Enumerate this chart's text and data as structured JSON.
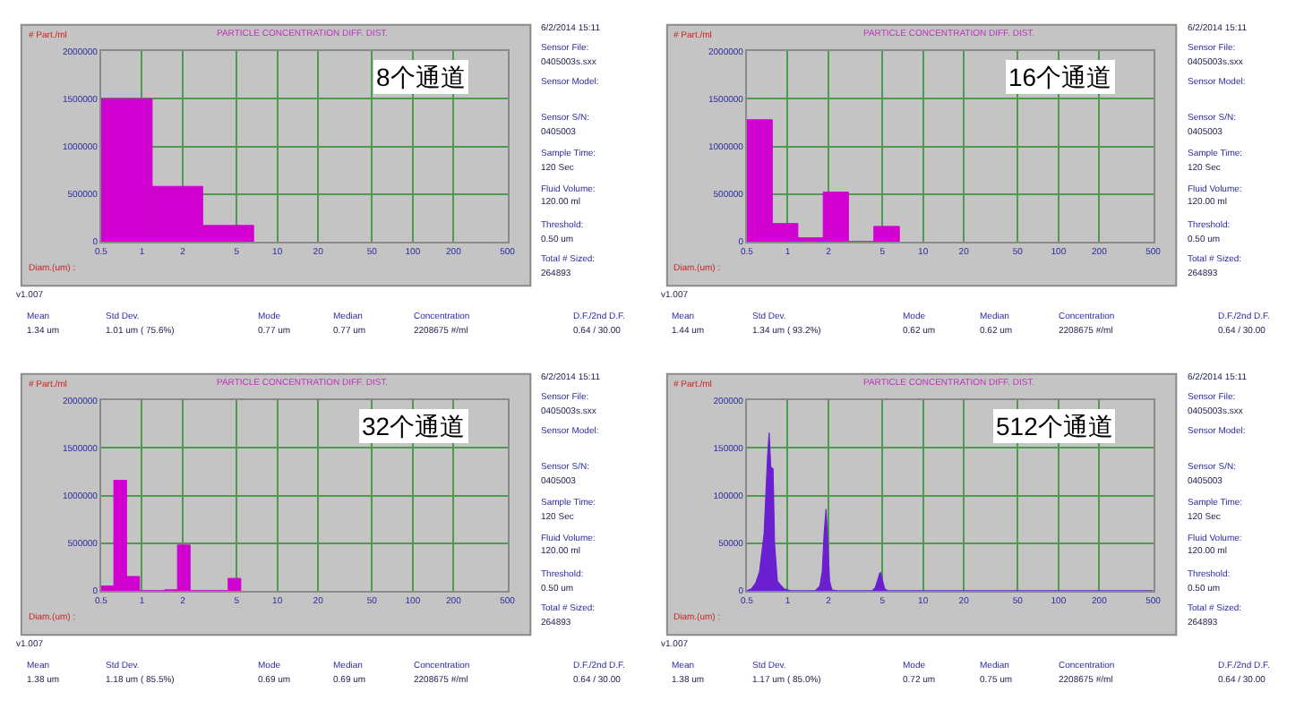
{
  "chart_data": [
    {
      "type": "histogram",
      "title": "PARTICLE CONCENTRATION DIFF. DIST.",
      "ylabel": "# Part./ml",
      "xlabel": "Diam.(um) :",
      "color": "#d000d0",
      "log": "x",
      "grid": true,
      "bins": [
        0.5,
        1.19,
        2.81,
        6.68
      ],
      "values": [
        1500000,
        580000,
        170000
      ],
      "xlim": [
        0.5,
        500
      ],
      "xticks": [
        0.5,
        1,
        2,
        5,
        10,
        20,
        50,
        100,
        200,
        500
      ],
      "ylim": [
        0,
        2000000
      ],
      "yticks": [
        0,
        500000,
        1000000,
        1500000,
        2000000
      ],
      "annotations": [
        "8个通道",
        "6/2/2014 15:11",
        "Sensor File:",
        "0405003s.sxx",
        "Sensor Model:",
        "Sensor S/N:",
        "0405003",
        "Sample Time:",
        "120 Sec",
        "Fluid Volume:",
        "120.00 ml",
        "Threshold:",
        "0.50 um",
        "Total # Sized:",
        "264893",
        "v1.007",
        "Mean",
        "Std Dev.",
        "Mode",
        "Median",
        "Concentration",
        "D.F./2nd D.F.",
        "1.34 um",
        "1.01 um ( 75.6%)",
        "0.77 um",
        "0.77 um",
        "2208675 #/ml",
        "0.64 / 30.00"
      ]
    },
    {
      "type": "histogram",
      "title": "PARTICLE CONCENTRATION DIFF. DIST.",
      "ylabel": "# Part./ml",
      "xlabel": "Diam.(um) :",
      "color": "#d000d0",
      "log": "x",
      "grid": true,
      "bins": [
        0.5,
        0.77,
        1.19,
        1.83,
        2.81,
        4.33,
        6.68
      ],
      "values": [
        1280000,
        190000,
        40000,
        520000,
        0,
        160000
      ],
      "xlim": [
        0.5,
        500
      ],
      "xticks": [
        0.5,
        1,
        2,
        5,
        10,
        20,
        50,
        100,
        200,
        500
      ],
      "ylim": [
        0,
        2000000
      ],
      "yticks": [
        0,
        500000,
        1000000,
        1500000,
        2000000
      ],
      "annotations": [
        "16个通道",
        "6/2/2014 15:11",
        "Sensor File:",
        "0405003s.sxx",
        "Sensor Model:",
        "Sensor S/N:",
        "0405003",
        "Sample Time:",
        "120 Sec",
        "Fluid Volume:",
        "120.00 ml",
        "Threshold:",
        "0.50 um",
        "Total # Sized:",
        "264893",
        "v1.007",
        "Mean",
        "Std Dev.",
        "Mode",
        "Median",
        "Concentration",
        "D.F./2nd D.F.",
        "1.44 um",
        "1.34 um ( 93.2%)",
        "0.62 um",
        "0.62 um",
        "2208675 #/ml",
        "0.64 / 30.00"
      ]
    },
    {
      "type": "histogram",
      "title": "PARTICLE CONCENTRATION DIFF. DIST.",
      "ylabel": "# Part./ml",
      "xlabel": "Diam.(um) :",
      "color": "#d000d0",
      "log": "x",
      "grid": true,
      "bins": [
        0.5,
        0.62,
        0.77,
        0.96,
        1.47,
        1.83,
        2.27,
        4.33,
        5.37
      ],
      "values": [
        50000,
        1160000,
        150000,
        0,
        10000,
        480000,
        0,
        130000
      ],
      "xlim": [
        0.5,
        500
      ],
      "xticks": [
        0.5,
        1,
        2,
        5,
        10,
        20,
        50,
        100,
        200,
        500
      ],
      "ylim": [
        0,
        2000000
      ],
      "yticks": [
        0,
        500000,
        1000000,
        1500000,
        2000000
      ],
      "annotations": [
        "32个通道",
        "6/2/2014 15:11",
        "Sensor File:",
        "0405003s.sxx",
        "Sensor Model:",
        "Sensor S/N:",
        "0405003",
        "Sample Time:",
        "120 Sec",
        "Fluid Volume:",
        "120.00 ml",
        "Threshold:",
        "0.50 um",
        "Total # Sized:",
        "264893",
        "v1.007",
        "Mean",
        "Std Dev.",
        "Mode",
        "Median",
        "Concentration",
        "D.F./2nd D.F.",
        "1.38 um",
        "1.18 um ( 85.5%)",
        "0.69 um",
        "0.69 um",
        "2208675 #/ml",
        "0.64 / 30.00"
      ]
    },
    {
      "type": "area",
      "title": "PARTICLE CONCENTRATION DIFF. DIST.",
      "ylabel": "# Part./ml",
      "xlabel": "Diam.(um) :",
      "color": "#6a20d0",
      "log": "x",
      "grid": true,
      "x": [
        0.5,
        0.54,
        0.58,
        0.62,
        0.67,
        0.69,
        0.71,
        0.73,
        0.75,
        0.78,
        0.8,
        0.84,
        0.94,
        1.05,
        1.6,
        1.73,
        1.8,
        1.86,
        1.92,
        1.98,
        2.04,
        2.12,
        2.3,
        4.2,
        4.43,
        4.6,
        4.77,
        4.85,
        5.0,
        5.2,
        5.5,
        500
      ],
      "values": [
        0,
        2000,
        8000,
        20000,
        60000,
        100000,
        140000,
        166000,
        130000,
        128000,
        50000,
        10000,
        2000,
        0,
        0,
        5000,
        20000,
        60000,
        86000,
        50000,
        10000,
        1000,
        0,
        0,
        3000,
        10000,
        18000,
        19000,
        12000,
        2000,
        0,
        0
      ],
      "xlim": [
        0.5,
        500
      ],
      "xticks": [
        0.5,
        1,
        2,
        5,
        10,
        20,
        50,
        100,
        200,
        500
      ],
      "ylim": [
        0,
        200000
      ],
      "yticks": [
        0,
        50000,
        100000,
        150000,
        200000
      ],
      "annotations": [
        "512个通道",
        "6/2/2014 15:11",
        "Sensor File:",
        "0405003s.sxx",
        "Sensor Model:",
        "Sensor S/N:",
        "0405003",
        "Sample Time:",
        "120 Sec",
        "Fluid Volume:",
        "120.00 ml",
        "Threshold:",
        "0.50 um",
        "Total # Sized:",
        "264893",
        "v1.007",
        "Mean",
        "Std Dev.",
        "Mode",
        "Median",
        "Concentration",
        "D.F./2nd D.F.",
        "1.38 um",
        "1.17 um ( 85.0%)",
        "0.72 um",
        "0.75 um",
        "2208675 #/ml",
        "0.64 / 30.00"
      ]
    }
  ]
}
